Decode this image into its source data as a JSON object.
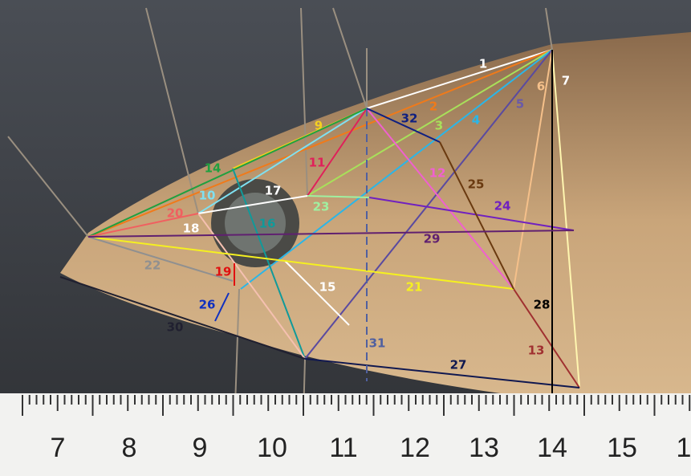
{
  "labels": [
    "1",
    "2",
    "3",
    "4",
    "5",
    "6",
    "7",
    "9",
    "10",
    "11",
    "12",
    "13",
    "14",
    "15",
    "16",
    "17",
    "18",
    "19",
    "20",
    "21",
    "22",
    "23",
    "24",
    "25",
    "26",
    "27",
    "28",
    "29",
    "30",
    "31",
    "32"
  ],
  "ruler": [
    "7",
    "8",
    "9",
    "10",
    "11",
    "12",
    "13",
    "14",
    "15",
    "1"
  ]
}
